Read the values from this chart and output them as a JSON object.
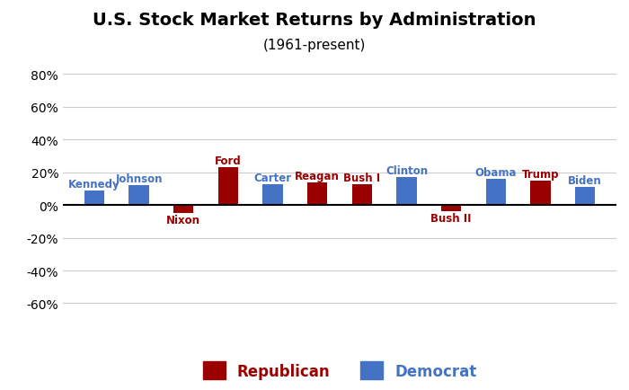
{
  "presidents": [
    "Kennedy",
    "Johnson",
    "Nixon",
    "Ford",
    "Carter",
    "Reagan",
    "Bush I",
    "Clinton",
    "Bush II",
    "Obama",
    "Trump",
    "Biden"
  ],
  "values": [
    0.09,
    0.12,
    -0.05,
    0.23,
    0.13,
    0.14,
    0.13,
    0.17,
    -0.04,
    0.16,
    0.15,
    0.11
  ],
  "parties": [
    "D",
    "D",
    "R",
    "R",
    "D",
    "R",
    "R",
    "D",
    "R",
    "D",
    "R",
    "D"
  ],
  "rep_color": "#9B0000",
  "dem_color": "#4472C4",
  "title": "U.S. Stock Market Returns by Administration",
  "subtitle": "(1961-present)",
  "ylim": [
    -0.7,
    0.9
  ],
  "yticks": [
    -0.6,
    -0.4,
    -0.2,
    0.0,
    0.2,
    0.4,
    0.6,
    0.8
  ],
  "background_color": "#FFFFFF",
  "grid_color": "#CCCCCC",
  "title_fontsize": 14,
  "subtitle_fontsize": 11,
  "label_fontsize": 8.5,
  "legend_fontsize": 12,
  "ytick_fontsize": 10
}
